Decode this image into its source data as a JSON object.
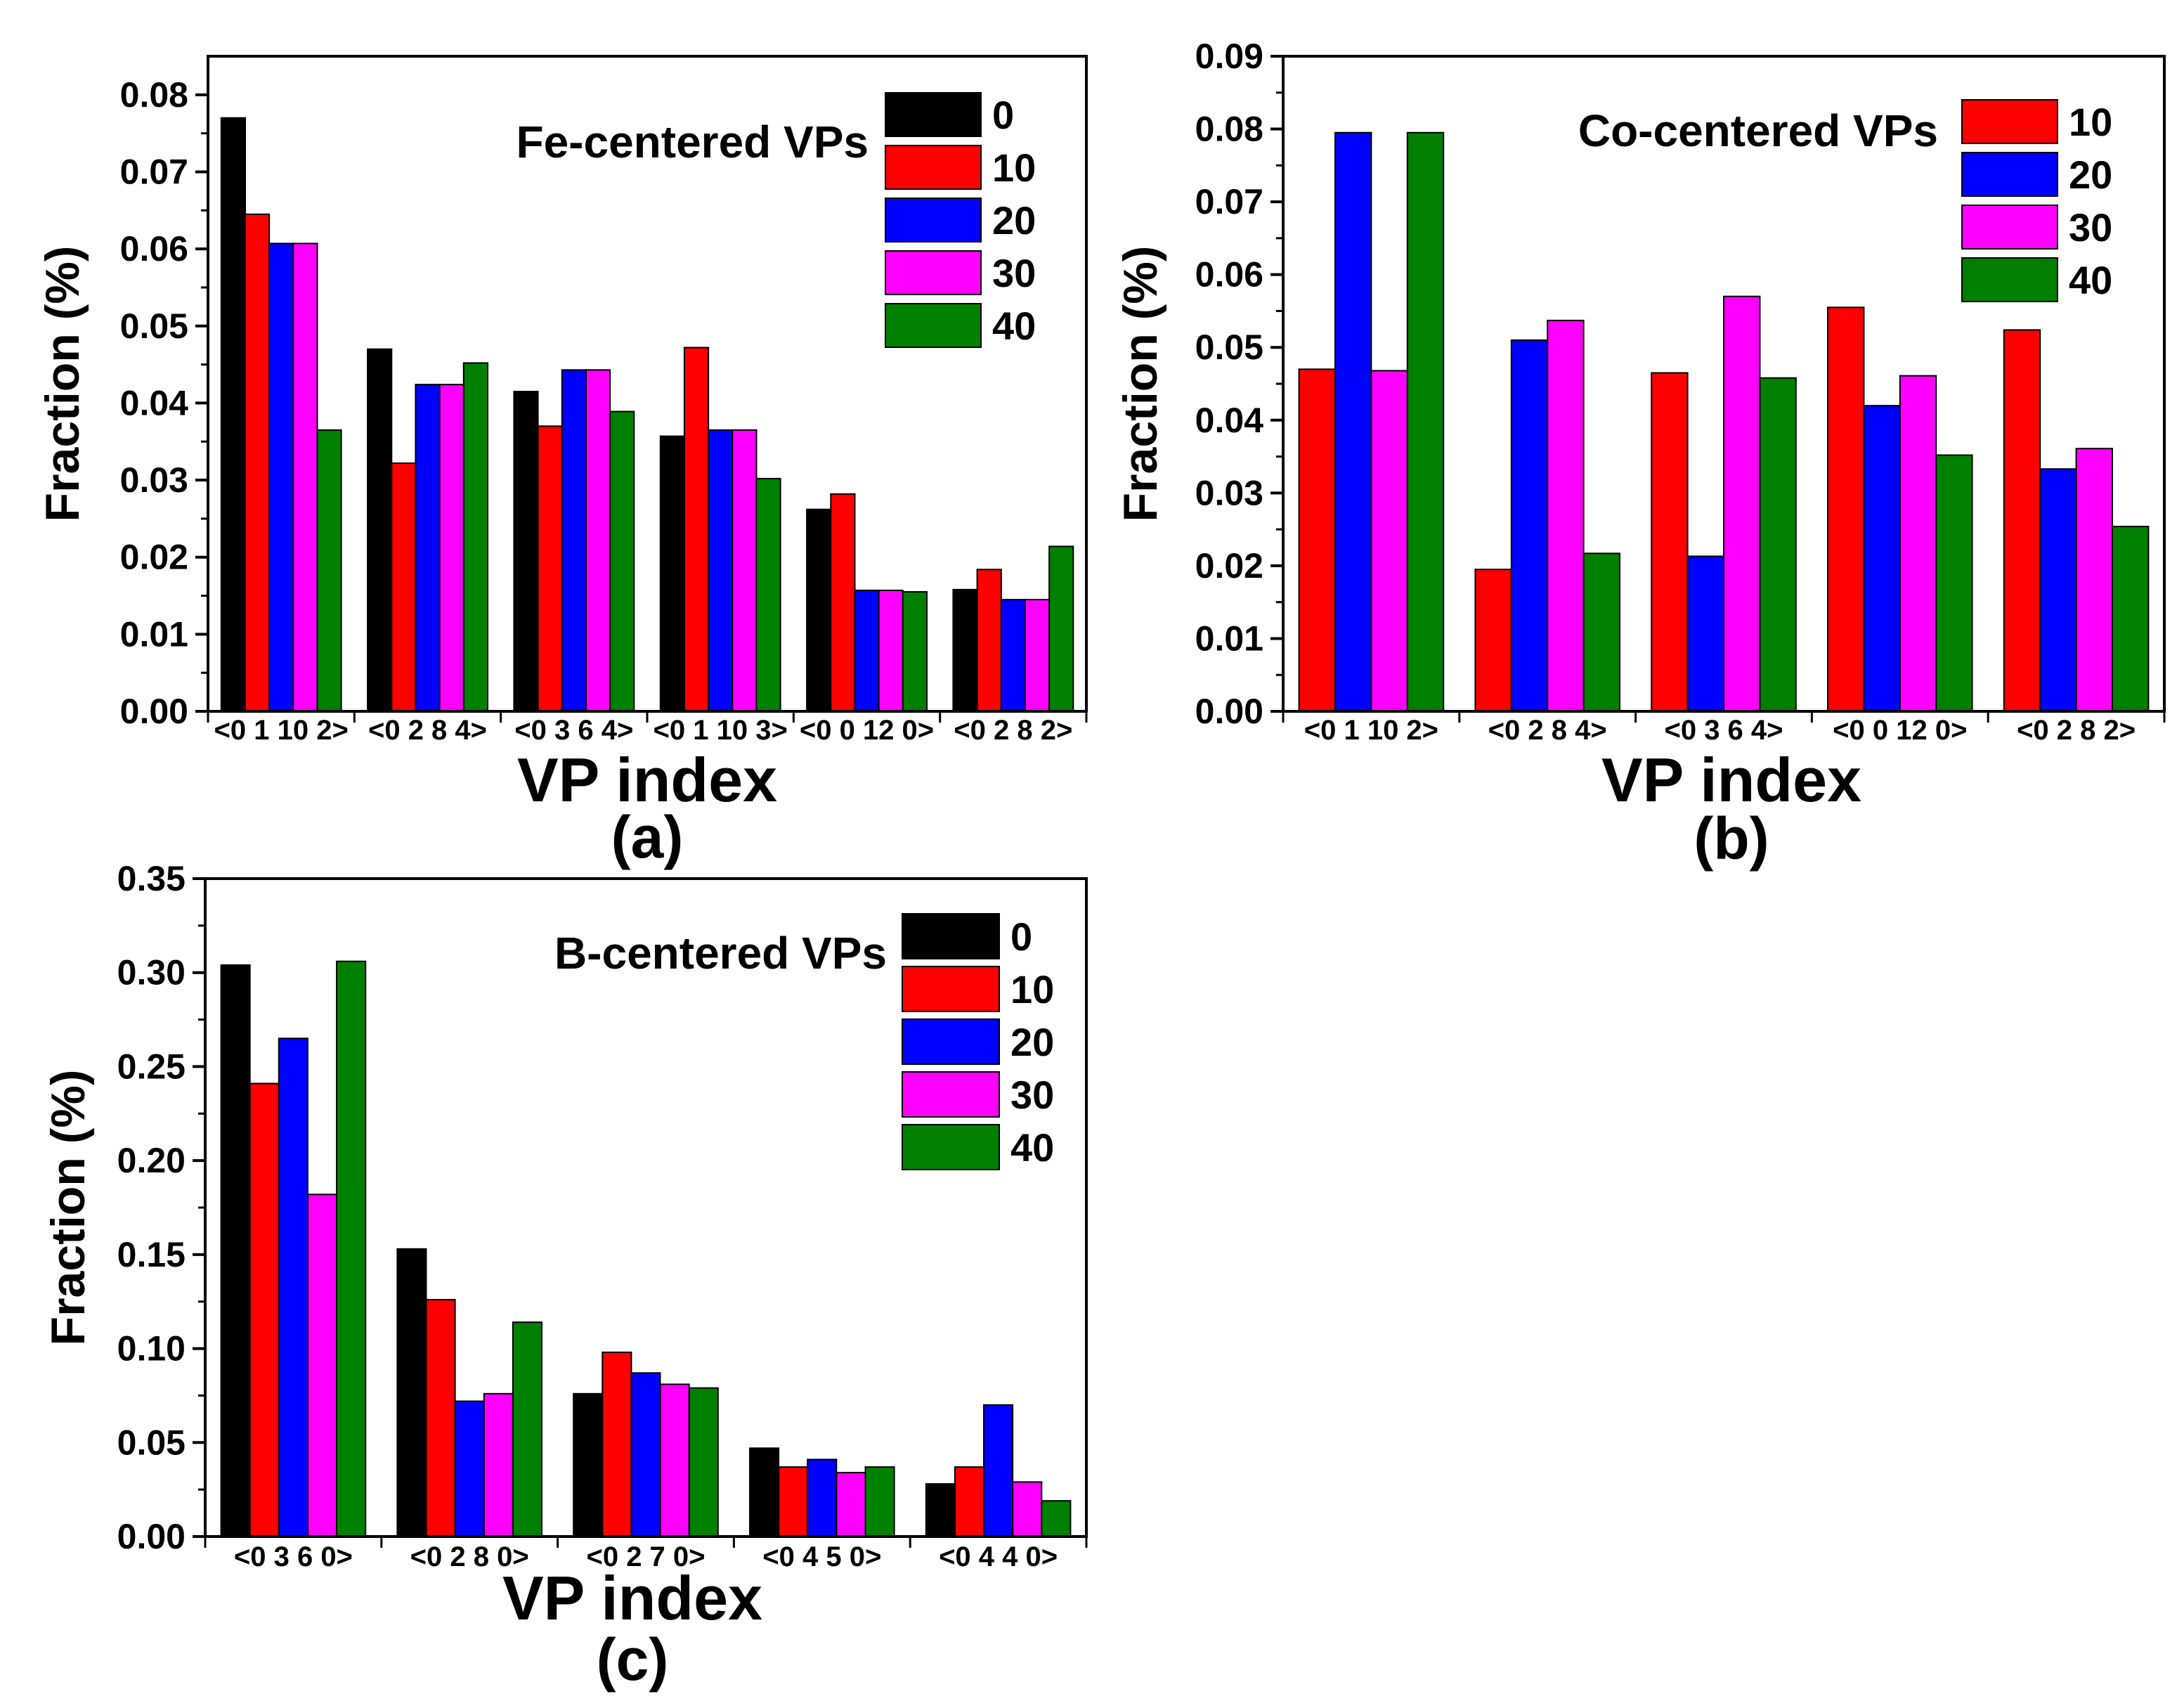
{
  "chart_data": [
    {
      "type": "bar",
      "panel_label": "(a)",
      "title": "Fe-centered VPs",
      "xlabel": "VP index",
      "ylabel": "Fraction (%)",
      "ylim": [
        0,
        0.085
      ],
      "yticks": [
        "0.00",
        "0.01",
        "0.02",
        "0.03",
        "0.04",
        "0.05",
        "0.06",
        "0.07",
        "0.08"
      ],
      "categories": [
        "<0 1 10 2>",
        "<0 2 8 4>",
        "<0 3 6 4>",
        "<0 1 10 3>",
        "<0 0 12 0>",
        "<0 2 8 2>"
      ],
      "series": [
        {
          "name": "0",
          "color": "#000000",
          "values": [
            0.077,
            0.047,
            0.0415,
            0.0357,
            0.0262,
            0.0158
          ]
        },
        {
          "name": "10",
          "color": "#ff0000",
          "values": [
            0.0645,
            0.0322,
            0.037,
            0.0472,
            0.0282,
            0.0184
          ]
        },
        {
          "name": "20",
          "color": "#0000ff",
          "values": [
            0.0607,
            0.0424,
            0.0443,
            0.0365,
            0.0157,
            0.0145
          ]
        },
        {
          "name": "30",
          "color": "#ff00ff",
          "values": [
            0.0607,
            0.0424,
            0.0443,
            0.0365,
            0.0157,
            0.0145
          ]
        },
        {
          "name": "40",
          "color": "#008000",
          "values": [
            0.0365,
            0.0452,
            0.0389,
            0.0302,
            0.0155,
            0.0214
          ]
        }
      ]
    },
    {
      "type": "bar",
      "panel_label": "(b)",
      "title": "Co-centered VPs",
      "xlabel": "VP index",
      "ylabel": "Fraction (%)",
      "ylim": [
        0,
        0.09
      ],
      "yticks": [
        "0.00",
        "0.01",
        "0.02",
        "0.03",
        "0.04",
        "0.05",
        "0.06",
        "0.07",
        "0.08",
        "0.09"
      ],
      "categories": [
        "<0 1 10 2>",
        "<0 2 8 4>",
        "<0 3 6 4>",
        "<0 0 12 0>",
        "<0 2 8 2>"
      ],
      "series": [
        {
          "name": "10",
          "color": "#ff0000",
          "values": [
            0.047,
            0.0195,
            0.0465,
            0.0555,
            0.0524
          ]
        },
        {
          "name": "20",
          "color": "#0000ff",
          "values": [
            0.0795,
            0.051,
            0.0213,
            0.042,
            0.0333
          ]
        },
        {
          "name": "30",
          "color": "#ff00ff",
          "values": [
            0.0468,
            0.0537,
            0.057,
            0.0461,
            0.0361
          ]
        },
        {
          "name": "40",
          "color": "#008000",
          "values": [
            0.0795,
            0.0217,
            0.0458,
            0.0352,
            0.0254
          ]
        }
      ]
    },
    {
      "type": "bar",
      "panel_label": "(c)",
      "title": "B-centered VPs",
      "xlabel": "VP index",
      "ylabel": "Fraction (%)",
      "ylim": [
        0,
        0.35
      ],
      "yticks": [
        "0.00",
        "0.05",
        "0.10",
        "0.15",
        "0.20",
        "0.25",
        "0.30",
        "0.35"
      ],
      "categories": [
        "<0 3 6 0>",
        "<0 2 8 0>",
        "<0 2 7 0>",
        "<0 4 5 0>",
        "<0 4 4 0>"
      ],
      "series": [
        {
          "name": "0",
          "color": "#000000",
          "values": [
            0.304,
            0.153,
            0.076,
            0.047,
            0.028
          ]
        },
        {
          "name": "10",
          "color": "#ff0000",
          "values": [
            0.241,
            0.126,
            0.098,
            0.037,
            0.037
          ]
        },
        {
          "name": "20",
          "color": "#0000ff",
          "values": [
            0.265,
            0.072,
            0.087,
            0.041,
            0.07
          ]
        },
        {
          "name": "30",
          "color": "#ff00ff",
          "values": [
            0.182,
            0.076,
            0.081,
            0.034,
            0.029
          ]
        },
        {
          "name": "40",
          "color": "#008000",
          "values": [
            0.306,
            0.114,
            0.079,
            0.037,
            0.019
          ]
        }
      ]
    }
  ]
}
